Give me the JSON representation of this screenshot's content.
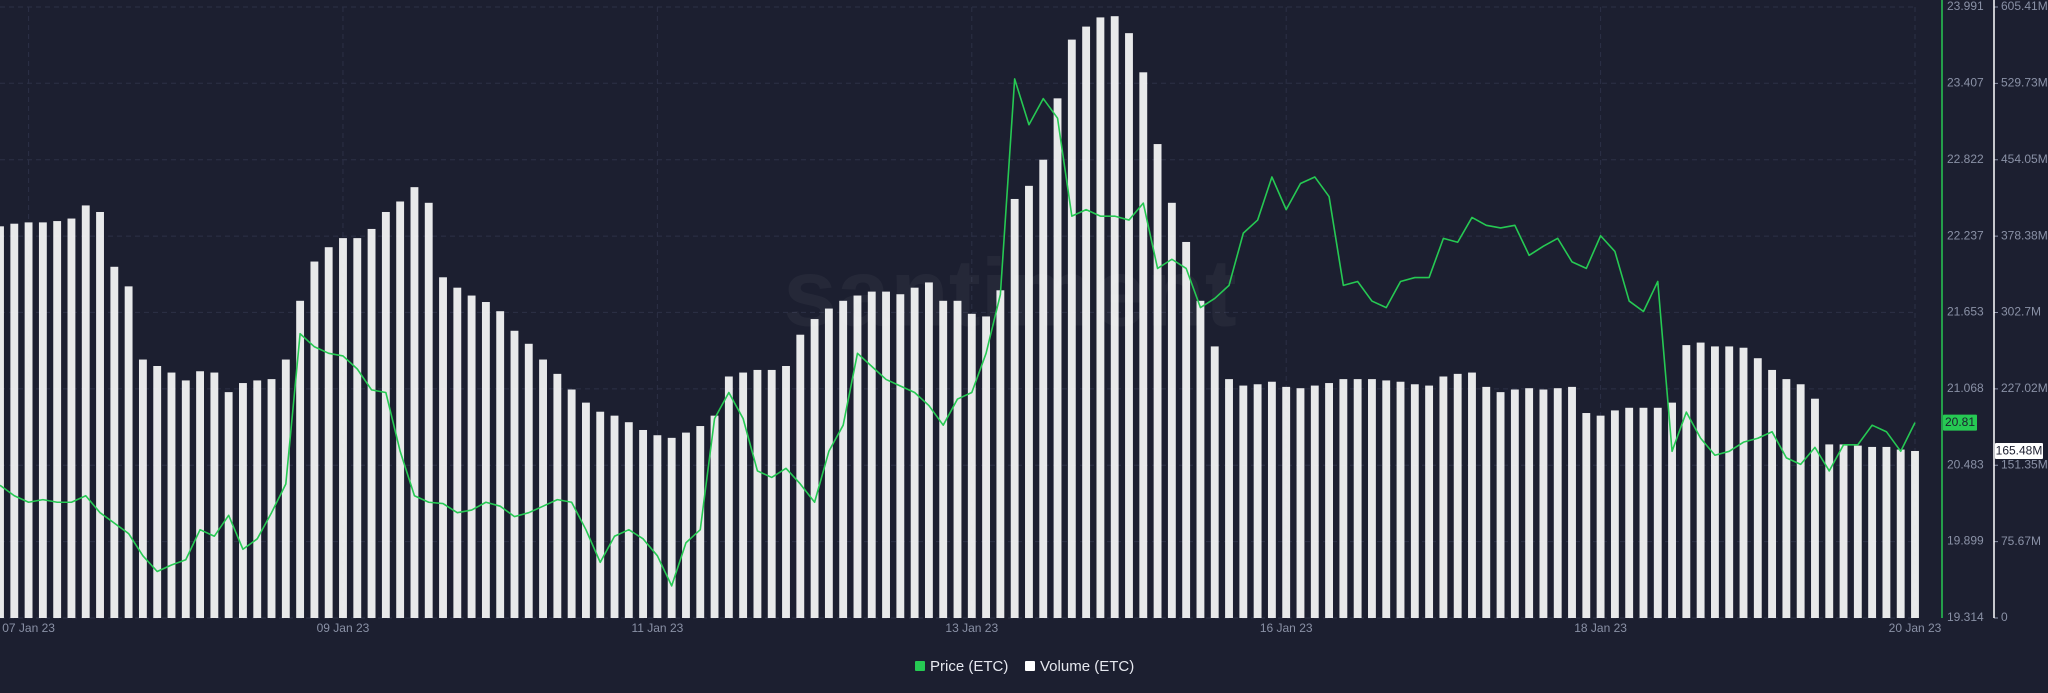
{
  "chart_data": {
    "type": "line",
    "watermark": "santiment",
    "grid": true,
    "categories": [
      null,
      null,
      "07 Jan 23",
      null,
      null,
      null,
      null,
      null,
      null,
      null,
      null,
      null,
      null,
      null,
      null,
      null,
      null,
      null,
      null,
      null,
      null,
      null,
      null,
      null,
      "09 Jan 23",
      null,
      null,
      null,
      null,
      null,
      null,
      null,
      null,
      null,
      null,
      null,
      null,
      null,
      null,
      null,
      null,
      null,
      null,
      null,
      null,
      null,
      "11 Jan 23",
      null,
      null,
      null,
      null,
      null,
      null,
      null,
      null,
      null,
      null,
      null,
      null,
      null,
      null,
      null,
      null,
      null,
      null,
      null,
      null,
      null,
      "13 Jan 23",
      null,
      null,
      null,
      null,
      null,
      null,
      null,
      null,
      null,
      null,
      null,
      null,
      null,
      null,
      null,
      null,
      null,
      null,
      null,
      null,
      null,
      "16 Jan 23",
      null,
      null,
      null,
      null,
      null,
      null,
      null,
      null,
      null,
      null,
      null,
      null,
      null,
      null,
      null,
      null,
      null,
      null,
      null,
      null,
      null,
      "18 Jan 23",
      null,
      null,
      null,
      null,
      null,
      null,
      null,
      null,
      null,
      null,
      null,
      null,
      null,
      null,
      null,
      null,
      null,
      null,
      null,
      null,
      null,
      "20 Jan 23"
    ],
    "series": [
      {
        "name": "Price (ETC)",
        "type": "line",
        "axis": "y",
        "color": "#26c953",
        "current_value": 20.81,
        "values": [
          20.33,
          20.25,
          20.2,
          20.22,
          20.2,
          20.2,
          20.25,
          20.12,
          20.04,
          19.96,
          19.79,
          19.67,
          19.72,
          19.76,
          19.99,
          19.94,
          20.1,
          19.84,
          19.92,
          20.12,
          20.34,
          21.49,
          21.39,
          21.34,
          21.32,
          21.22,
          21.06,
          21.04,
          20.59,
          20.25,
          20.2,
          20.19,
          20.12,
          20.14,
          20.2,
          20.17,
          20.09,
          20.12,
          20.17,
          20.22,
          20.2,
          19.99,
          19.74,
          19.94,
          19.99,
          19.92,
          19.79,
          19.56,
          19.89,
          19.99,
          20.84,
          21.04,
          20.84,
          20.44,
          20.39,
          20.46,
          20.34,
          20.2,
          20.59,
          20.79,
          21.34,
          21.24,
          21.14,
          21.09,
          21.04,
          20.94,
          20.79,
          20.99,
          21.04,
          21.34,
          21.79,
          23.44,
          23.09,
          23.29,
          23.14,
          22.39,
          22.44,
          22.39,
          22.39,
          22.36,
          22.49,
          21.99,
          22.06,
          21.99,
          21.69,
          21.76,
          21.86,
          22.26,
          22.36,
          22.69,
          22.44,
          22.64,
          22.69,
          22.54,
          21.86,
          21.89,
          21.74,
          21.69,
          21.89,
          21.92,
          21.92,
          22.22,
          22.19,
          22.38,
          22.32,
          22.3,
          22.32,
          22.09,
          22.16,
          22.22,
          22.04,
          21.99,
          22.24,
          22.12,
          21.74,
          21.66,
          21.89,
          20.59,
          20.89,
          20.69,
          20.56,
          20.59,
          20.66,
          20.69,
          20.74,
          20.54,
          20.49,
          20.62,
          20.44,
          20.64,
          20.64,
          20.79,
          20.74,
          20.59,
          20.81
        ]
      },
      {
        "name": "Volume (ETC)",
        "type": "bar",
        "axis": "y2",
        "color": "#ffffff",
        "current_value": {
          "value": 165480000,
          "label": "165.48M"
        },
        "values": [
          388100000,
          390700000,
          392000000,
          392000000,
          393300000,
          395800000,
          408800000,
          402300000,
          348000000,
          328600000,
          256100000,
          249700000,
          243200000,
          235400000,
          244500000,
          243200000,
          223800000,
          232800000,
          235400000,
          236700000,
          256100000,
          314300000,
          353200000,
          367400000,
          376400000,
          376400000,
          385500000,
          402300000,
          412700000,
          426900000,
          411400000,
          337600000,
          327300000,
          319500000,
          313100000,
          304000000,
          284600000,
          271700000,
          256100000,
          241900000,
          226400000,
          213400000,
          204400000,
          200500000,
          194000000,
          186300000,
          181100000,
          178500000,
          183700000,
          190200000,
          200500000,
          239300000,
          243200000,
          245800000,
          245800000,
          249700000,
          280700000,
          296200000,
          306600000,
          314300000,
          319500000,
          323400000,
          323400000,
          320800000,
          327300000,
          332500000,
          314300000,
          314300000,
          301400000,
          298800000,
          324700000,
          415200000,
          428200000,
          454100000,
          514900000,
          573100000,
          586000000,
          595100000,
          596300000,
          579500000,
          540700000,
          469600000,
          411400000,
          372600000,
          314300000,
          269100000,
          236700000,
          230300000,
          231600000,
          234100000,
          229000000,
          227700000,
          230300000,
          232800000,
          236700000,
          236700000,
          236700000,
          235400000,
          234100000,
          231600000,
          230300000,
          239300000,
          241900000,
          243200000,
          229000000,
          223800000,
          226400000,
          227700000,
          226400000,
          227700000,
          229000000,
          203100000,
          200500000,
          205700000,
          208300000,
          208300000,
          208300000,
          213400000,
          270400000,
          272900000,
          269100000,
          269100000,
          267800000,
          257400000,
          245800000,
          236700000,
          231600000,
          217300000,
          172000000,
          172000000,
          170800000,
          169500000,
          169500000,
          166900000,
          165480000
        ]
      }
    ],
    "ylim": [
      19.314,
      23.991
    ],
    "yticks": [
      19.314,
      19.899,
      20.483,
      21.068,
      21.653,
      22.237,
      22.822,
      23.407,
      23.991
    ],
    "y2lim": [
      0,
      605410000
    ],
    "y2ticks": [
      0,
      {
        "value": 75670000,
        "label": "75.67M"
      },
      {
        "value": 151350000,
        "label": "151.35M"
      },
      {
        "value": 227020000,
        "label": "227.02M"
      },
      {
        "value": 302700000,
        "label": "302.7M"
      },
      {
        "value": 378380000,
        "label": "378.38M"
      },
      {
        "value": 454050000,
        "label": "454.05M"
      },
      {
        "value": 529730000,
        "label": "529.73M"
      },
      {
        "value": 605410000,
        "label": "605.41M"
      }
    ]
  }
}
